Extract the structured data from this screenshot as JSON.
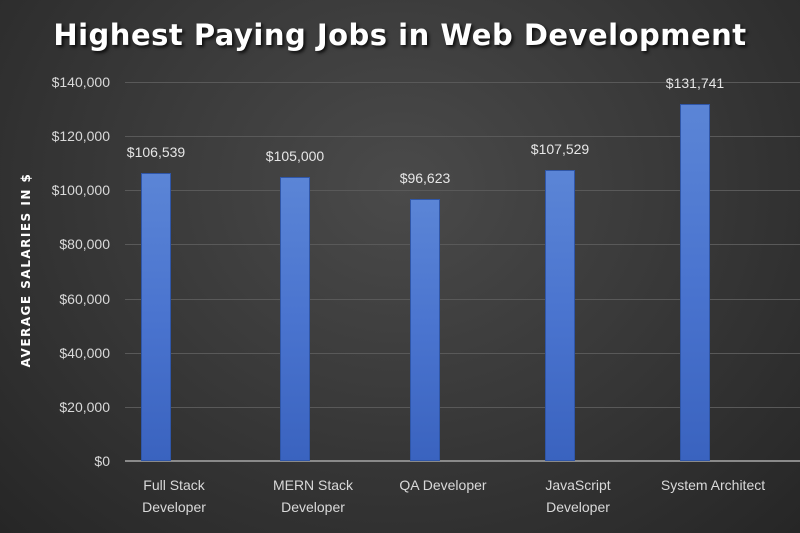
{
  "chart_data": {
    "type": "bar",
    "title": "Highest Paying Jobs in Web Development",
    "xlabel": "",
    "ylabel": "AVERAGE SALARIES IN $",
    "categories": [
      "Full Stack Developer",
      "MERN Stack Developer",
      "QA Developer",
      "JavaScript Developer",
      "System Architect"
    ],
    "category_lines": [
      [
        "Full Stack",
        "Developer"
      ],
      [
        "MERN Stack",
        "Developer"
      ],
      [
        "QA Developer",
        ""
      ],
      [
        "JavaScript",
        "Developer"
      ],
      [
        "System Architect",
        ""
      ]
    ],
    "values": [
      106539,
      105000,
      96623,
      107529,
      131741
    ],
    "data_labels": [
      "$106,539",
      "$105,000",
      "$96,623",
      "$107,529",
      "$131,741"
    ],
    "ylim": [
      0,
      140000
    ],
    "yticks": [
      0,
      20000,
      40000,
      60000,
      80000,
      100000,
      120000,
      140000
    ],
    "ytick_labels": [
      "$0",
      "$20,000",
      "$40,000",
      "$60,000",
      "$80,000",
      "$100,000",
      "$120,000",
      "$140,000"
    ],
    "grid": true,
    "legend": null,
    "colors": {
      "bar": "#4a74cf",
      "background": "#3a3a3a",
      "gridline": "#595959",
      "text": "#d9d9d9"
    }
  }
}
